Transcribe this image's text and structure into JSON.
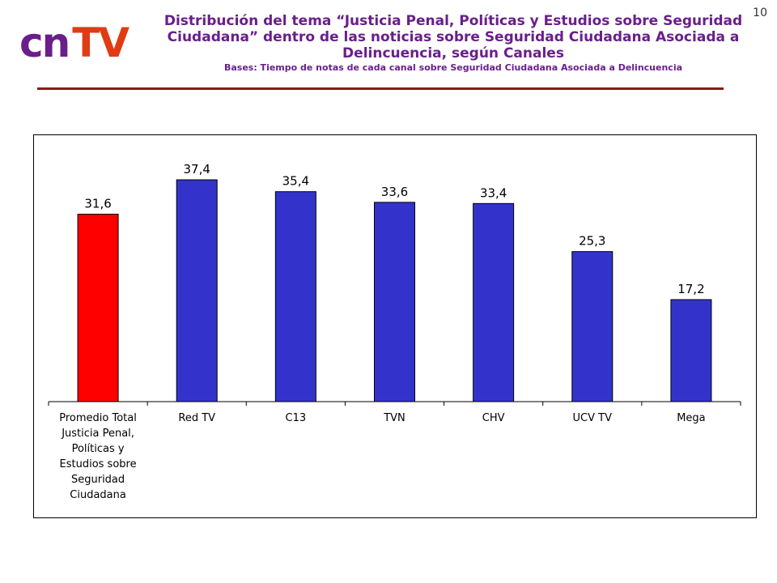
{
  "logo": {
    "part1": "cn",
    "part2": "TV"
  },
  "page_number": "10",
  "header": {
    "title": "Distribución del tema “Justicia Penal, Políticas y Estudios sobre Seguridad Ciudadana” dentro de las noticias sobre Seguridad Ciudadana Asociada a Delincuencia, según Canales",
    "subtitle": "Bases: Tiempo de notas de cada canal sobre Seguridad Ciudadana Asociada a Delincuencia"
  },
  "colors": {
    "accent_bar": "#ff0000",
    "bar": "#3333cc",
    "title": "#6a1e8c",
    "rule": "#8b1a1a"
  },
  "chart_data": {
    "type": "bar",
    "categories": [
      [
        "Promedio Total",
        "Justicia Penal,",
        "Políticas y",
        "Estudios sobre",
        "Seguridad",
        "Ciudadana"
      ],
      [
        "Red TV"
      ],
      [
        "C13"
      ],
      [
        "TVN"
      ],
      [
        "CHV"
      ],
      [
        "UCV TV"
      ],
      [
        "Mega"
      ]
    ],
    "values": [
      31.6,
      37.4,
      35.4,
      33.6,
      33.4,
      25.3,
      17.2
    ],
    "value_labels": [
      "31,6",
      "37,4",
      "35,4",
      "33,6",
      "33,4",
      "25,3",
      "17,2"
    ],
    "highlight_index": 0,
    "ylim": [
      0,
      40
    ],
    "grid": false,
    "legend": "none"
  }
}
